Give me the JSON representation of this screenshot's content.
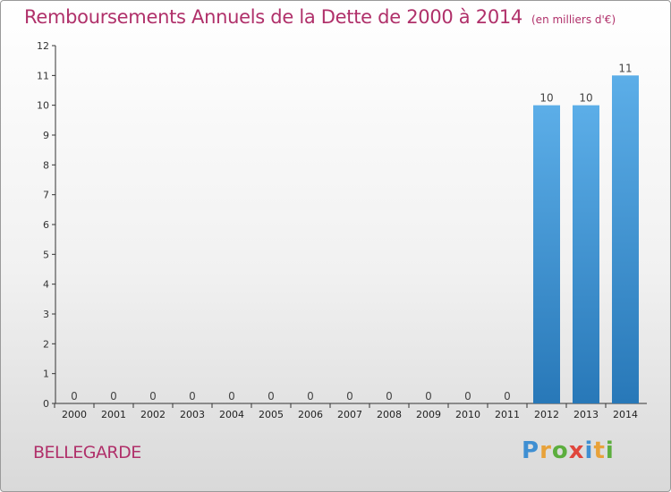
{
  "title": "Remboursements Annuels de la Dette de 2000 à 2014",
  "unit_note": "(en milliers d'€)",
  "commune": "BELLEGARDE",
  "logo": {
    "text": "Proxiti",
    "letters": [
      {
        "ch": "P",
        "color": "#3f8fd2"
      },
      {
        "ch": "r",
        "color": "#e8a23a"
      },
      {
        "ch": "o",
        "color": "#5cae3e"
      },
      {
        "ch": "x",
        "color": "#e0463c"
      },
      {
        "ch": "i",
        "color": "#3f8fd2"
      },
      {
        "ch": "t",
        "color": "#e8a23a"
      },
      {
        "ch": "i",
        "color": "#5cae3e"
      }
    ]
  },
  "colors": {
    "title": "#b0306a",
    "bar_top": "#5caee8",
    "bar_bottom": "#2878b8",
    "axis": "#333333"
  },
  "chart_data": {
    "type": "bar",
    "title": "Remboursements Annuels de la Dette de 2000 à 2014",
    "xlabel": "",
    "ylabel": "",
    "categories": [
      "2000",
      "2001",
      "2002",
      "2003",
      "2004",
      "2005",
      "2006",
      "2007",
      "2008",
      "2009",
      "2010",
      "2011",
      "2012",
      "2013",
      "2014"
    ],
    "values": [
      0,
      0,
      0,
      0,
      0,
      0,
      0,
      0,
      0,
      0,
      0,
      0,
      10,
      10,
      11
    ],
    "data_labels": [
      "0",
      "0",
      "0",
      "0",
      "0",
      "0",
      "0",
      "0",
      "0",
      "0",
      "0",
      "0",
      "10",
      "10",
      "11"
    ],
    "ylim": [
      0,
      12
    ],
    "yticks": [
      "0",
      "1",
      "2",
      "3",
      "4",
      "5",
      "6",
      "7",
      "8",
      "9",
      "10",
      "11",
      "12"
    ],
    "grid": false,
    "legend": "none"
  }
}
